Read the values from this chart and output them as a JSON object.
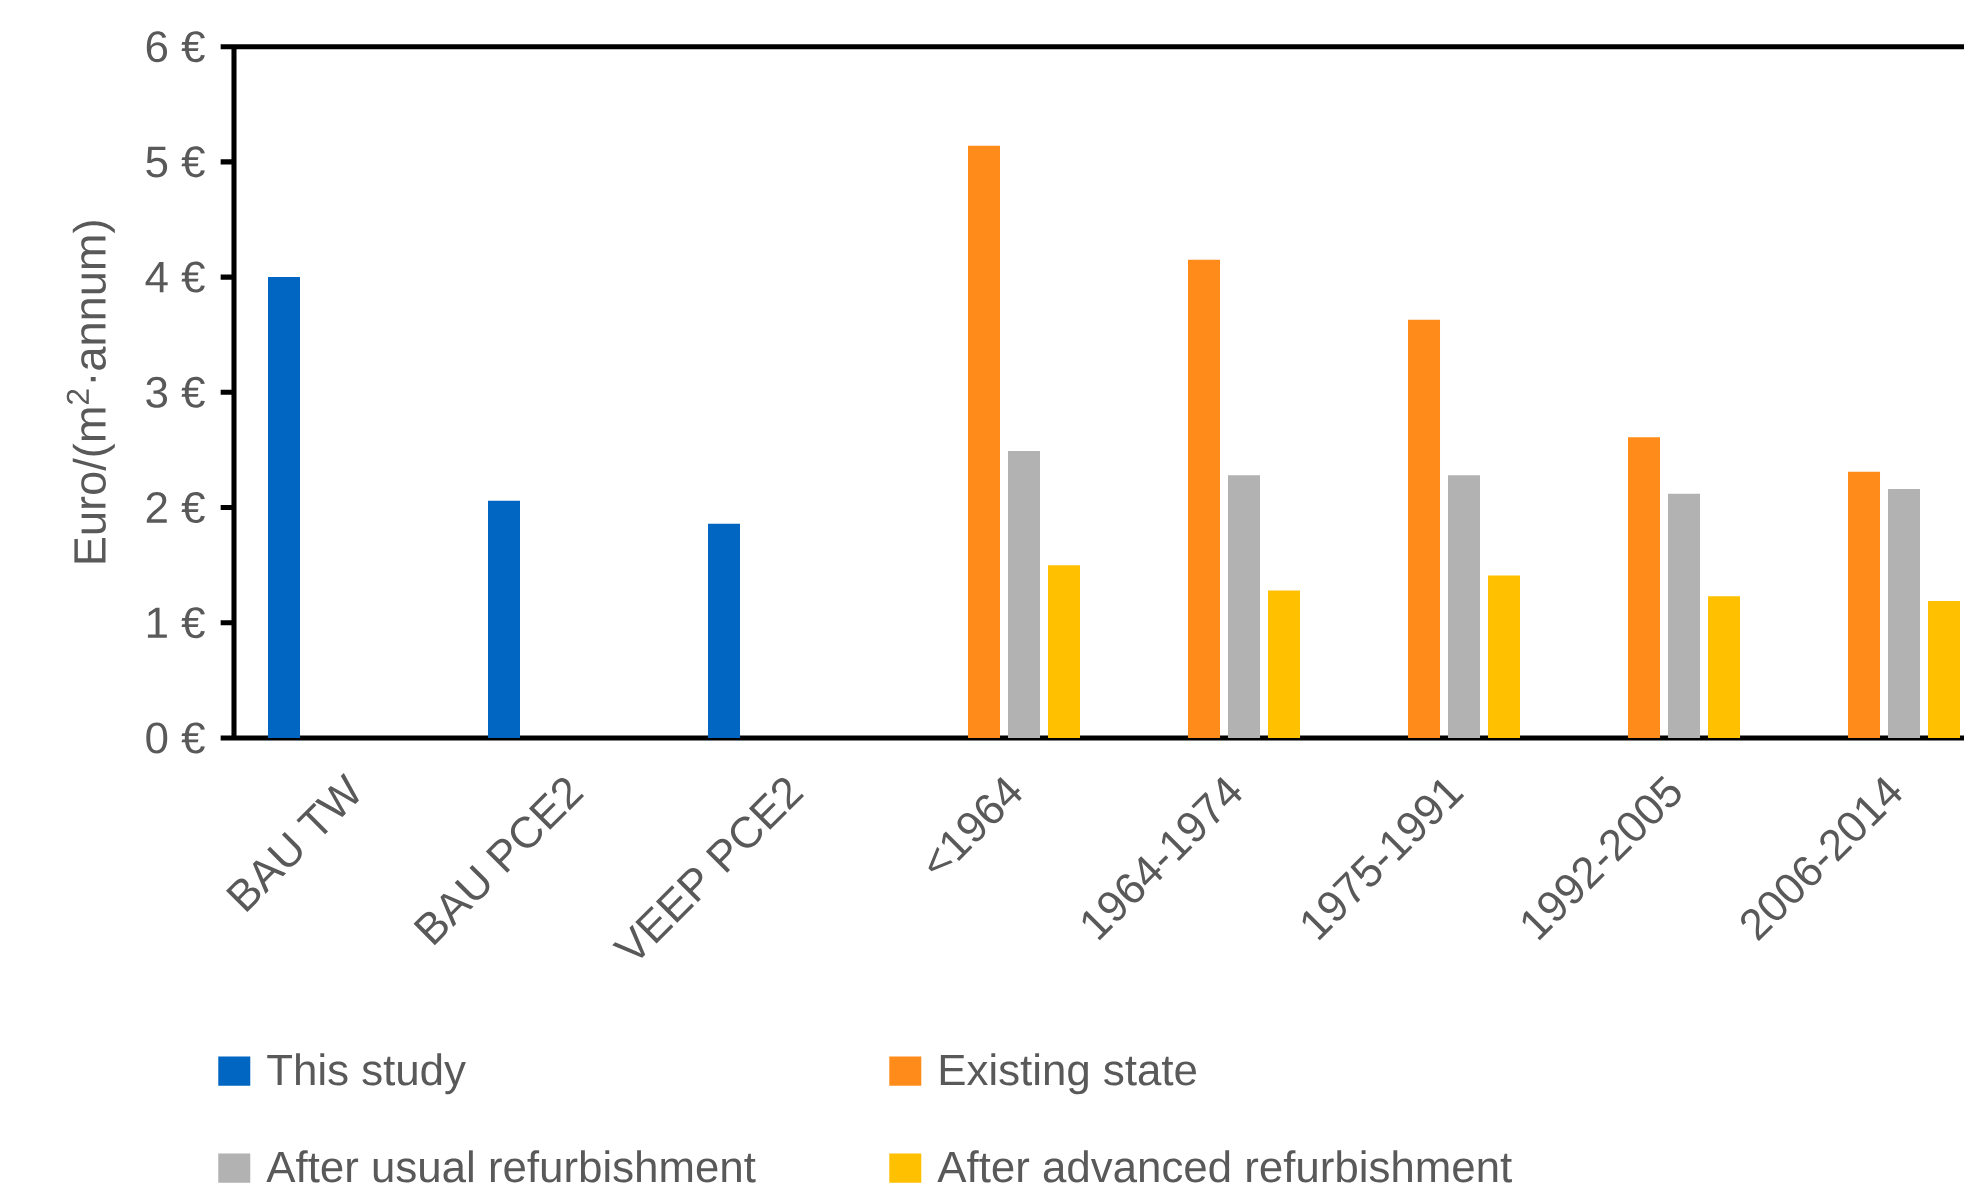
{
  "chart_data": {
    "type": "bar",
    "ylabel": "Euro/(m$^{2}$·annum)",
    "categories": [
      "BAU TW",
      "BAU PCE2",
      "VEEP PCE2",
      "<1964",
      "1964-1974",
      "1975-1991",
      "1992-2005",
      "2006-2014"
    ],
    "series": [
      {
        "name": "This study",
        "color": "#0066c2",
        "values": [
          4.0,
          2.06,
          1.86,
          null,
          null,
          null,
          null,
          null
        ]
      },
      {
        "name": "Existing state",
        "color": "#ff8c1a",
        "values": [
          null,
          null,
          null,
          5.14,
          4.15,
          3.63,
          2.61,
          2.31
        ]
      },
      {
        "name": "After usual refurbishment",
        "color": "#b2b2b2",
        "values": [
          null,
          null,
          null,
          2.49,
          2.28,
          2.28,
          2.12,
          2.16
        ]
      },
      {
        "name": "After advanced refurbishment",
        "color": "#ffc000",
        "values": [
          null,
          null,
          null,
          1.5,
          1.28,
          1.41,
          1.23,
          1.19
        ]
      }
    ],
    "ylim": [
      0,
      6
    ],
    "yticks": [
      {
        "value": 0,
        "label": "0 €"
      },
      {
        "value": 1,
        "label": "1 €"
      },
      {
        "value": 2,
        "label": "2 €"
      },
      {
        "value": 3,
        "label": "3 €"
      },
      {
        "value": 4,
        "label": "4 €"
      },
      {
        "value": 5,
        "label": "5 €"
      },
      {
        "value": 6,
        "label": "6 €"
      }
    ],
    "legend": "bottom"
  }
}
